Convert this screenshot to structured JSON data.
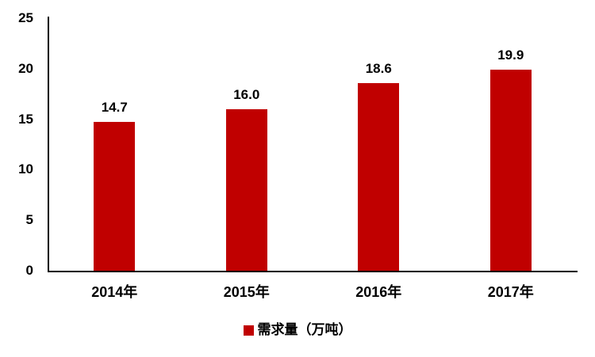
{
  "chart_data": {
    "type": "bar",
    "categories": [
      "2014年",
      "2015年",
      "2016年",
      "2017年"
    ],
    "values": [
      14.7,
      16.0,
      18.6,
      19.9
    ],
    "value_labels": [
      "14.7",
      "16.0",
      "18.6",
      "19.9"
    ],
    "title": "",
    "xlabel": "",
    "ylabel": "",
    "ylim": [
      0,
      25
    ],
    "yticks": [
      0,
      5,
      10,
      15,
      20,
      25
    ],
    "grid": false,
    "legend_position": "bottom",
    "series_name": "需求量（万吨）",
    "bar_color": "#c00000",
    "axis_color": "#000000",
    "text_color": "#000000",
    "background_color": "#ffffff"
  },
  "legend": {
    "swatch_color": "#c00000",
    "label": "需求量（万吨）"
  }
}
